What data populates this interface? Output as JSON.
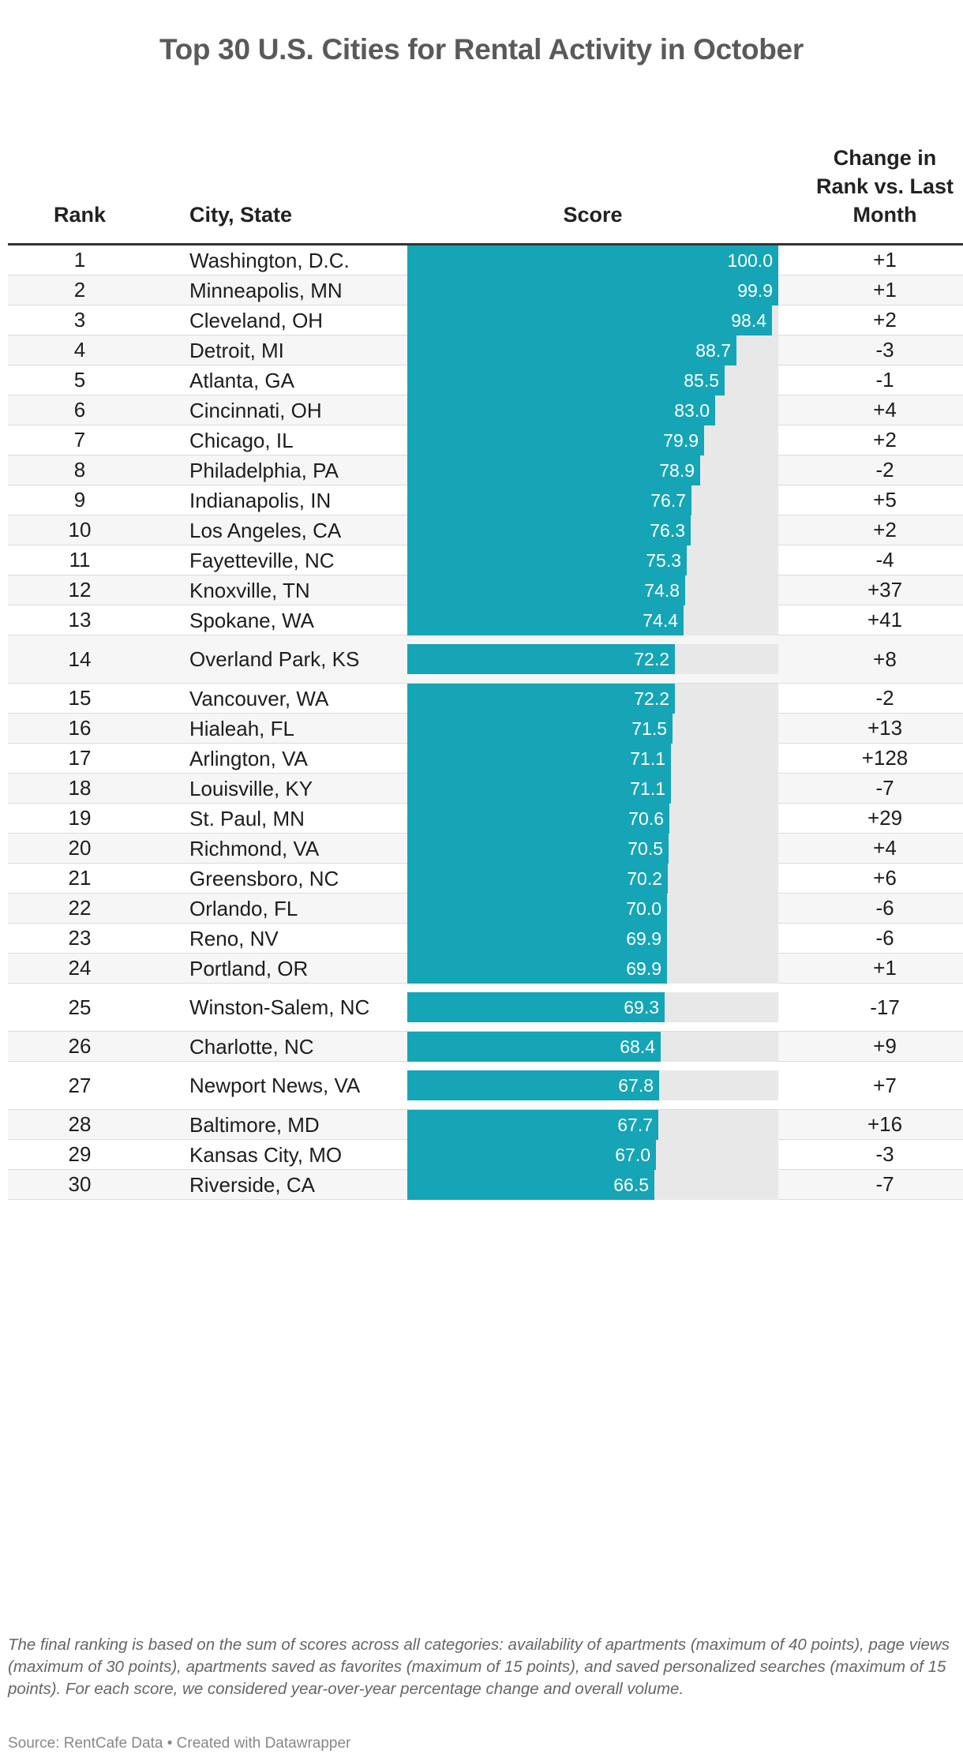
{
  "title": "Top 30 U.S. Cities for Rental Activity in October",
  "headers": {
    "rank": "Rank",
    "city": "City, State",
    "score": "Score",
    "change": "Change in Rank vs. Last Month"
  },
  "colors": {
    "bar": "#15a5b6",
    "track": "#e8e8e8",
    "title": "#5a5a5a"
  },
  "chart_data": {
    "type": "table",
    "title": "Top 30 U.S. Cities for Rental Activity in October",
    "columns": [
      "Rank",
      "City, State",
      "Score",
      "Change in Rank vs. Last Month"
    ],
    "score_max": 100,
    "rows": [
      {
        "rank": "1",
        "city": "Washington, D.C.",
        "score": 100.0,
        "score_label": "100.0",
        "change": "+1"
      },
      {
        "rank": "2",
        "city": "Minneapolis, MN",
        "score": 99.9,
        "score_label": "99.9",
        "change": "+1"
      },
      {
        "rank": "3",
        "city": "Cleveland, OH",
        "score": 98.4,
        "score_label": "98.4",
        "change": "+2"
      },
      {
        "rank": "4",
        "city": "Detroit, MI",
        "score": 88.7,
        "score_label": "88.7",
        "change": "-3"
      },
      {
        "rank": "5",
        "city": "Atlanta, GA",
        "score": 85.5,
        "score_label": "85.5",
        "change": "-1"
      },
      {
        "rank": "6",
        "city": "Cincinnati, OH",
        "score": 83.0,
        "score_label": "83.0",
        "change": "+4"
      },
      {
        "rank": "7",
        "city": "Chicago, IL",
        "score": 79.9,
        "score_label": "79.9",
        "change": "+2"
      },
      {
        "rank": "8",
        "city": "Philadelphia, PA",
        "score": 78.9,
        "score_label": "78.9",
        "change": "-2"
      },
      {
        "rank": "9",
        "city": "Indianapolis, IN",
        "score": 76.7,
        "score_label": "76.7",
        "change": "+5"
      },
      {
        "rank": "10",
        "city": "Los Angeles, CA",
        "score": 76.3,
        "score_label": "76.3",
        "change": "+2"
      },
      {
        "rank": "11",
        "city": "Fayetteville, NC",
        "score": 75.3,
        "score_label": "75.3",
        "change": "-4"
      },
      {
        "rank": "12",
        "city": "Knoxville, TN",
        "score": 74.8,
        "score_label": "74.8",
        "change": "+37"
      },
      {
        "rank": "13",
        "city": "Spokane, WA",
        "score": 74.4,
        "score_label": "74.4",
        "change": "+41"
      },
      {
        "rank": "14",
        "city": "Overland Park, KS",
        "score": 72.2,
        "score_label": "72.2",
        "change": "+8",
        "two_line": true
      },
      {
        "rank": "15",
        "city": "Vancouver, WA",
        "score": 72.2,
        "score_label": "72.2",
        "change": "-2"
      },
      {
        "rank": "16",
        "city": "Hialeah, FL",
        "score": 71.5,
        "score_label": "71.5",
        "change": "+13"
      },
      {
        "rank": "17",
        "city": "Arlington, VA",
        "score": 71.1,
        "score_label": "71.1",
        "change": "+128"
      },
      {
        "rank": "18",
        "city": "Louisville, KY",
        "score": 71.1,
        "score_label": "71.1",
        "change": "-7"
      },
      {
        "rank": "19",
        "city": "St. Paul, MN",
        "score": 70.6,
        "score_label": "70.6",
        "change": "+29"
      },
      {
        "rank": "20",
        "city": "Richmond, VA",
        "score": 70.5,
        "score_label": "70.5",
        "change": "+4"
      },
      {
        "rank": "21",
        "city": "Greensboro, NC",
        "score": 70.2,
        "score_label": "70.2",
        "change": "+6"
      },
      {
        "rank": "22",
        "city": "Orlando, FL",
        "score": 70.0,
        "score_label": "70.0",
        "change": "-6"
      },
      {
        "rank": "23",
        "city": "Reno, NV",
        "score": 69.9,
        "score_label": "69.9",
        "change": "-6"
      },
      {
        "rank": "24",
        "city": "Portland, OR",
        "score": 69.9,
        "score_label": "69.9",
        "change": "+1"
      },
      {
        "rank": "25",
        "city": "Winston-Salem, NC",
        "score": 69.3,
        "score_label": "69.3",
        "change": "-17",
        "two_line": true
      },
      {
        "rank": "26",
        "city": "Charlotte, NC",
        "score": 68.4,
        "score_label": "68.4",
        "change": "+9"
      },
      {
        "rank": "27",
        "city": "Newport News, VA",
        "score": 67.8,
        "score_label": "67.8",
        "change": "+7",
        "two_line": true
      },
      {
        "rank": "28",
        "city": "Baltimore, MD",
        "score": 67.7,
        "score_label": "67.7",
        "change": "+16"
      },
      {
        "rank": "29",
        "city": "Kansas City, MO",
        "score": 67.0,
        "score_label": "67.0",
        "change": "-3"
      },
      {
        "rank": "30",
        "city": "Riverside, CA",
        "score": 66.5,
        "score_label": "66.5",
        "change": "-7"
      }
    ]
  },
  "note": "The final ranking is based on the sum of scores across all categories: availability of apartments (maximum of 40 points), page views (maximum of 30 points), apartments saved as favorites (maximum of 15 points), and saved personalized searches (maximum of 15 points). For each score, we considered year-over-year percentage change and overall volume.",
  "source": "Source: RentCafe Data • Created with Datawrapper"
}
